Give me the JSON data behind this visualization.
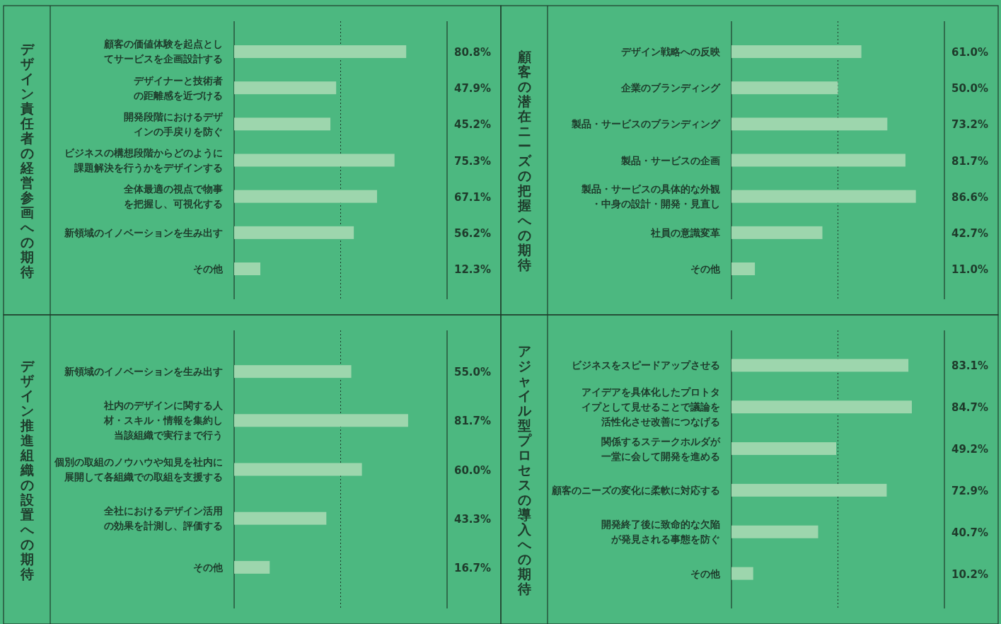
{
  "chart_data": [
    {
      "type": "bar",
      "orientation": "horizontal",
      "title": "デザイン責任者の経営参画への期待",
      "categories": [
        "顧客の価値体験を起点としてサービスを企画設計する",
        "デザイナーと技術者の距離感を近づける",
        "開発段階におけるデザインの手戻りを防ぐ",
        "ビジネスの構想段階からどのように課題解決を行うかをデザインする",
        "全体最適の視点で物事を把握し、可視化する",
        "新領域のイノベーションを生み出す",
        "その他"
      ],
      "values": [
        80.8,
        47.9,
        45.2,
        75.3,
        67.1,
        56.2,
        12.3
      ],
      "value_labels": [
        "80.8%",
        "47.9%",
        "45.2%",
        "75.3%",
        "67.1%",
        "56.2%",
        "12.3%"
      ],
      "color": "#9dd6ad",
      "xlim": [
        0,
        100
      ],
      "ref_lines": [
        {
          "axis": "x",
          "value": 50,
          "line_style": "dotted",
          "color": "#1e3b2b"
        }
      ]
    },
    {
      "type": "bar",
      "orientation": "horizontal",
      "title": "顧客の潜在ニーズの把握への期待",
      "categories": [
        "デザイン戦略への反映",
        "企業のブランディング",
        "製品・サービスのブランディング",
        "製品・サービスの企画",
        "製品・サービスの具体的な外観・中身の設計・開発・見直し",
        "社員の意識変革",
        "その他"
      ],
      "values": [
        61.0,
        50.0,
        73.2,
        81.7,
        86.6,
        42.7,
        11.0
      ],
      "value_labels": [
        "61.0%",
        "50.0%",
        "73.2%",
        "81.7%",
        "86.6%",
        "42.7%",
        "11.0%"
      ],
      "color": "#9dd6ad",
      "xlim": [
        0,
        100
      ],
      "ref_lines": [
        {
          "axis": "x",
          "value": 50,
          "line_style": "dotted",
          "color": "#1e3b2b"
        }
      ]
    },
    {
      "type": "bar",
      "orientation": "horizontal",
      "title": "デザイン推進組織の設置への期待",
      "categories": [
        "新領域のイノベーションを生み出す",
        "社内のデザインに関する人材・スキル・情報を集約し当該組織で実行まで行う",
        "個別の取組のノウハウや知見を社内に展開して各組織での取組を支援する",
        "全社におけるデザイン活用の効果を計測し、評価する",
        "その他"
      ],
      "values": [
        55.0,
        81.7,
        60.0,
        43.3,
        16.7
      ],
      "value_labels": [
        "55.0%",
        "81.7%",
        "60.0%",
        "43.3%",
        "16.7%"
      ],
      "color": "#9dd6ad",
      "xlim": [
        0,
        100
      ],
      "ref_lines": [
        {
          "axis": "x",
          "value": 50,
          "line_style": "dotted",
          "color": "#1e3b2b"
        }
      ]
    },
    {
      "type": "bar",
      "orientation": "horizontal",
      "title": "アジャイル型プロセスの導入への期待",
      "categories": [
        "ビジネスをスピードアップさせる",
        "アイデアを具体化したプロトタイプとして見せることで議論を活性化させ改善につなげる",
        "関係するステークホルダが一堂に会して開発を進める",
        "顧客のニーズの変化に柔軟に対応する",
        "開発終了後に致命的な欠陥が発見される事態を防ぐ",
        "その他"
      ],
      "values": [
        83.1,
        84.7,
        49.2,
        72.9,
        40.7,
        10.2
      ],
      "value_labels": [
        "83.1%",
        "84.7%",
        "49.2%",
        "72.9%",
        "40.7%",
        "10.2%"
      ],
      "color": "#9dd6ad",
      "xlim": [
        0,
        100
      ],
      "ref_lines": [
        {
          "axis": "x",
          "value": 50,
          "line_style": "dotted",
          "color": "#1e3b2b"
        }
      ]
    }
  ]
}
